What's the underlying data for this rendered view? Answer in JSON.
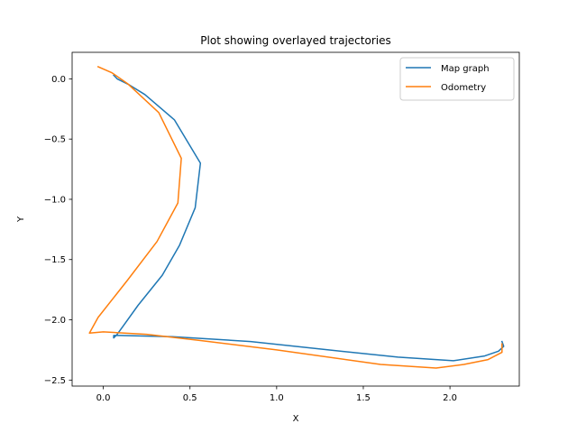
{
  "chart_data": {
    "type": "line",
    "title": "Plot showing overlayed trajectories",
    "xlabel": "X",
    "ylabel": "Y",
    "xlim": [
      -0.18,
      2.4
    ],
    "ylim": [
      -2.55,
      0.22
    ],
    "xticks": [
      0.0,
      0.5,
      1.0,
      1.5,
      2.0
    ],
    "xtick_labels": [
      "0.0",
      "0.5",
      "1.0",
      "1.5",
      "2.0"
    ],
    "yticks": [
      0.0,
      -0.5,
      -1.0,
      -1.5,
      -2.0,
      -2.5
    ],
    "ytick_labels": [
      "0.0",
      "−0.5",
      "−1.0",
      "−1.5",
      "−2.0",
      "−2.5"
    ],
    "grid": false,
    "legend_position": "top-right",
    "series": [
      {
        "name": "Map graph",
        "color": "#1f77b4",
        "x": [
          0.06,
          0.08,
          0.15,
          0.24,
          0.41,
          0.56,
          0.53,
          0.44,
          0.34,
          0.2,
          0.12,
          0.08,
          0.06,
          0.06,
          0.1,
          0.4,
          0.85,
          1.3,
          1.7,
          2.02,
          2.2,
          2.28,
          2.31,
          2.3
        ],
        "y": [
          0.03,
          0.0,
          -0.05,
          -0.13,
          -0.34,
          -0.7,
          -1.07,
          -1.38,
          -1.63,
          -1.88,
          -2.04,
          -2.12,
          -2.15,
          -2.13,
          -2.13,
          -2.14,
          -2.18,
          -2.25,
          -2.31,
          -2.34,
          -2.3,
          -2.26,
          -2.22,
          -2.18
        ]
      },
      {
        "name": "Odometry",
        "color": "#ff7f0e",
        "x": [
          -0.03,
          0.05,
          0.14,
          0.32,
          0.45,
          0.43,
          0.31,
          0.14,
          -0.03,
          -0.08,
          0.0,
          0.25,
          0.55,
          1.0,
          1.6,
          1.92,
          2.08,
          2.22,
          2.3,
          2.3
        ],
        "y": [
          0.1,
          0.05,
          -0.04,
          -0.28,
          -0.66,
          -1.03,
          -1.35,
          -1.67,
          -1.98,
          -2.11,
          -2.1,
          -2.12,
          -2.17,
          -2.25,
          -2.37,
          -2.4,
          -2.37,
          -2.33,
          -2.27,
          -2.2
        ]
      }
    ]
  }
}
